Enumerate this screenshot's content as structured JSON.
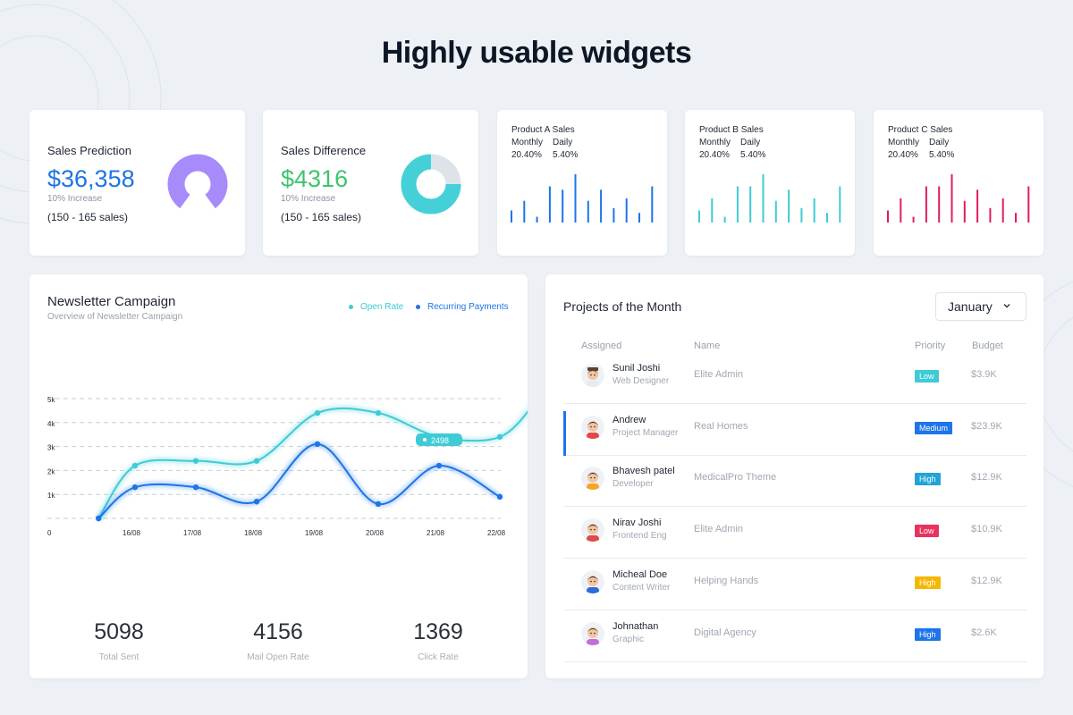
{
  "page": {
    "headline": "Highly usable widgets"
  },
  "stats": [
    {
      "title": "Sales Prediction",
      "value": "$36,358",
      "sub": "10% Increase",
      "range": "(150 - 165 sales)",
      "value_color": "#1e74e8",
      "chart_color": "#a78bfa",
      "percent": 80
    },
    {
      "title": "Sales Difference",
      "value": "$4316",
      "sub": "10% Increase",
      "range": "(150 - 165 sales)",
      "value_color": "#3ec46d",
      "chart_color": "#45d0d8",
      "percent": 75
    }
  ],
  "products": [
    {
      "title": "Product A Sales",
      "col1": "Monthly",
      "col2": "Daily",
      "val1": "20.40%",
      "val2": "5.40%",
      "color": "#1e74e8",
      "bars": [
        0.25,
        0.45,
        0.12,
        0.75,
        0.68,
        1.0,
        0.45,
        0.68,
        0.3,
        0.5,
        0.2,
        0.75
      ]
    },
    {
      "title": "Product B Sales",
      "col1": "Monthly",
      "col2": "Daily",
      "val1": "20.40%",
      "val2": "5.40%",
      "color": "#3fcbd6",
      "bars": [
        0.25,
        0.5,
        0.12,
        0.75,
        0.75,
        1.0,
        0.45,
        0.68,
        0.3,
        0.5,
        0.2,
        0.75
      ]
    },
    {
      "title": "Product C Sales",
      "col1": "Monthly",
      "col2": "Daily",
      "val1": "20.40%",
      "val2": "5.40%",
      "color": "#e11d5a",
      "bars": [
        0.25,
        0.5,
        0.12,
        0.75,
        0.75,
        1.0,
        0.45,
        0.68,
        0.3,
        0.5,
        0.2,
        0.75
      ]
    }
  ],
  "newsletter": {
    "title": "Newsletter Campaign",
    "subtitle": "Overview of Newsletter Campaign",
    "legend": [
      {
        "label": "Open Rate",
        "color": "#3fcbd6"
      },
      {
        "label": "Recurring Payments",
        "color": "#1e74e8"
      }
    ],
    "tooltip": "2498",
    "stats": [
      {
        "value": "5098",
        "label": "Total Sent"
      },
      {
        "value": "4156",
        "label": "Mail Open Rate"
      },
      {
        "value": "1369",
        "label": "Click Rate"
      }
    ]
  },
  "chart_data": {
    "type": "line",
    "x_labels": [
      "0",
      "16/08",
      "17/08",
      "18/08",
      "19/08",
      "20/08",
      "21/08",
      "22/08"
    ],
    "y_ticks": [
      "1k",
      "2k",
      "3k",
      "4k",
      "5k"
    ],
    "ylim": [
      0,
      5
    ],
    "grid": true,
    "series": [
      {
        "name": "Open Rate",
        "color": "#3fcbd6",
        "points": [
          [
            0.4,
            0
          ],
          [
            1,
            2.2
          ],
          [
            2,
            2.4
          ],
          [
            3,
            2.4
          ],
          [
            4,
            4.4
          ],
          [
            5,
            4.4
          ],
          [
            6,
            3.4
          ],
          [
            7,
            3.4
          ],
          [
            7.6,
            4.9
          ]
        ]
      },
      {
        "name": "Recurring Payments",
        "color": "#1e74e8",
        "points": [
          [
            0.4,
            0
          ],
          [
            1,
            1.3
          ],
          [
            2,
            1.3
          ],
          [
            3,
            0.7
          ],
          [
            4,
            3.1
          ],
          [
            5,
            0.6
          ],
          [
            6,
            2.2
          ],
          [
            7,
            0.9
          ]
        ]
      }
    ]
  },
  "projects": {
    "title": "Projects of the Month",
    "month": "January",
    "headers": {
      "assigned": "Assigned",
      "name": "Name",
      "priority": "Priority",
      "budget": "Budget"
    },
    "rows": [
      {
        "person": "Sunil Joshi",
        "role": "Web Designer",
        "project": "Elite Admin",
        "priority": "Low",
        "priority_color": "#3fcbd6",
        "budget": "$3.9K",
        "hair": "#3a2a25",
        "shirt": "#e7eaf0",
        "hat": "#5a4234"
      },
      {
        "person": "Andrew",
        "role": "Project Manager",
        "project": "Real Homes",
        "priority": "Medium",
        "priority_color": "#1e74e8",
        "budget": "$23.9K",
        "hair": "#2a1d18",
        "shirt": "#e24848",
        "hat": ""
      },
      {
        "person": "Bhavesh patel",
        "role": "Developer",
        "project": "MedicalPro Theme",
        "priority": "High",
        "priority_color": "#22a3d8",
        "budget": "$12.9K",
        "hair": "#2a1d18",
        "shirt": "#f4a623",
        "hat": ""
      },
      {
        "person": "Nirav Joshi",
        "role": "Frontend Eng",
        "project": "Elite Admin",
        "priority": "Low",
        "priority_color": "#e8335f",
        "budget": "$10.9K",
        "hair": "#2a1d18",
        "shirt": "#e24848",
        "hat": ""
      },
      {
        "person": "Micheal Doe",
        "role": "Content Writer",
        "project": "Helping Hands",
        "priority": "High",
        "priority_color": "#f5b700",
        "budget": "$12.9K",
        "hair": "#2a1d18",
        "shirt": "#2f6ad6",
        "hat": ""
      },
      {
        "person": "Johnathan",
        "role": "Graphic",
        "project": "Digital Agency",
        "priority": "High",
        "priority_color": "#1e74e8",
        "budget": "$2.6K",
        "hair": "#3a2a25",
        "shirt": "#c36fd6",
        "hat": ""
      }
    ]
  }
}
